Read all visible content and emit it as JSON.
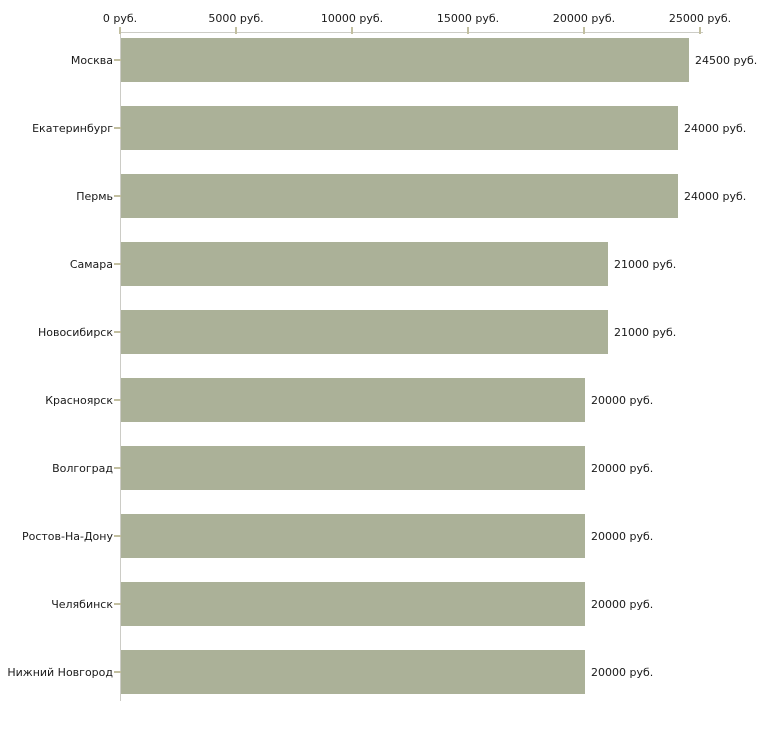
{
  "chart_data": {
    "type": "bar",
    "orientation": "horizontal",
    "title": "",
    "xlabel": "",
    "ylabel": "",
    "xlim": [
      0,
      25000
    ],
    "grid": false,
    "legend": false,
    "categories": [
      "Москва",
      "Екатеринбург",
      "Пермь",
      "Самара",
      "Новосибирск",
      "Красноярск",
      "Волгоград",
      "Ростов-На-Дону",
      "Челябинск",
      "Нижний Новгород"
    ],
    "values": [
      24500,
      24000,
      24000,
      21000,
      21000,
      20000,
      20000,
      20000,
      20000,
      20000
    ],
    "bar_labels": [
      "24500 руб.",
      "24000 руб.",
      "24000 руб.",
      "21000 руб.",
      "21000 руб.",
      "20000 руб.",
      "20000 руб.",
      "20000 руб.",
      "20000 руб.",
      "20000 руб."
    ],
    "x_ticks": [
      {
        "value": 0,
        "label": "0 руб."
      },
      {
        "value": 5000,
        "label": "5000 руб."
      },
      {
        "value": 10000,
        "label": "10000 руб."
      },
      {
        "value": 15000,
        "label": "15000 руб."
      },
      {
        "value": 20000,
        "label": "20000 руб."
      },
      {
        "value": 25000,
        "label": "25000 руб."
      }
    ],
    "colors": {
      "bar": "#ABB198",
      "axis_line": "#CCCCC6",
      "tick_mark": "#C2BFA0",
      "text": "#1A1A1A"
    }
  }
}
